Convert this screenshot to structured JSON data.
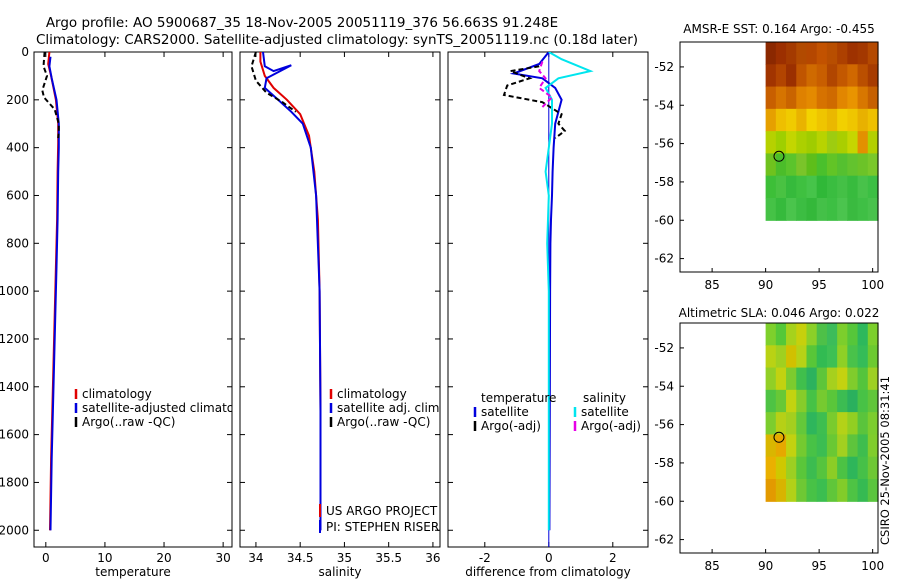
{
  "title_line1": "Argo profile: AO 5900687_35 18-Nov-2005 20051119_376 56.663S 91.248E",
  "title_line2": "Climatology: CARS2000. Satellite-adjusted climatology: synTS_20051119.nc (0.18d later)",
  "credit": "CSIRO 25-Nov-2005 08:31:41",
  "colors": {
    "climatology": "#e00000",
    "satellite": "#0000dd",
    "argo": "#000000",
    "cyan": "#00e5ee",
    "magenta": "#e600e6"
  },
  "chart_data": [
    {
      "id": "temperature",
      "type": "line",
      "xlabel": "temperature",
      "ylim": [
        2070,
        0
      ],
      "xlim": [
        -2,
        31.5
      ],
      "xticks": [
        0,
        10,
        20,
        30
      ],
      "yticks": [
        0,
        200,
        400,
        600,
        800,
        1000,
        1200,
        1400,
        1600,
        1800,
        2000
      ],
      "legend": [
        "climatology",
        "satellite-adjusted climatology",
        "Argo(..raw -QC)"
      ],
      "series": [
        {
          "name": "climatology",
          "color": "climatology",
          "dash": false,
          "x": [
            0.6,
            0.4,
            0.9,
            1.7,
            2.1,
            2.1,
            2.0,
            1.9,
            1.7,
            1.5,
            1.3,
            1.1,
            0.9,
            0.7
          ],
          "y": [
            0,
            50,
            100,
            200,
            300,
            380,
            500,
            700,
            900,
            1100,
            1300,
            1500,
            1700,
            2000
          ]
        },
        {
          "name": "satellite",
          "color": "satellite",
          "dash": false,
          "x": [
            0.8,
            0.6,
            1.0,
            1.8,
            2.2,
            2.2,
            2.1,
            2.0,
            1.8,
            1.6,
            1.4,
            1.2,
            1.0,
            0.8
          ],
          "y": [
            20,
            60,
            110,
            200,
            300,
            400,
            500,
            700,
            900,
            1100,
            1300,
            1500,
            1700,
            2000
          ]
        },
        {
          "name": "argo",
          "color": "argo",
          "dash": true,
          "x": [
            -0.2,
            -0.4,
            0.2,
            -0.6,
            -0.3,
            1.5,
            2.2,
            2.2,
            2.1
          ],
          "y": [
            0,
            60,
            100,
            160,
            190,
            240,
            300,
            330,
            360
          ]
        }
      ]
    },
    {
      "id": "salinity",
      "type": "line",
      "xlabel": "salinity",
      "ylim": [
        2070,
        0
      ],
      "xlim": [
        33.82,
        36.08
      ],
      "xticks": [
        34,
        34.5,
        35,
        35.5,
        36
      ],
      "xticklabels": [
        "34",
        "34.5",
        "35",
        "35.5",
        "36"
      ],
      "legend": [
        "climatology",
        "satellite adj. clim.",
        "Argo(..raw -QC)"
      ],
      "annotation": [
        "US ARGO PROJECT",
        "PI: STEPHEN RISER"
      ],
      "series": [
        {
          "name": "climatology",
          "color": "climatology",
          "dash": false,
          "x": [
            34.05,
            34.05,
            34.1,
            34.2,
            34.35,
            34.5,
            34.6,
            34.66,
            34.7,
            34.72,
            34.73,
            34.73
          ],
          "y": [
            0,
            40,
            100,
            150,
            200,
            260,
            350,
            500,
            700,
            1000,
            1500,
            2000
          ]
        },
        {
          "name": "satellite",
          "color": "satellite",
          "dash": false,
          "x": [
            34.08,
            34.1,
            34.2,
            34.4,
            34.12,
            34.1,
            34.25,
            34.4,
            34.53,
            34.62,
            34.68,
            34.72,
            34.73,
            34.73
          ],
          "y": [
            0,
            60,
            80,
            55,
            110,
            150,
            200,
            250,
            300,
            400,
            600,
            1000,
            1500,
            2000
          ]
        },
        {
          "name": "argo",
          "color": "argo",
          "dash": true,
          "x": [
            34.0,
            33.95,
            34.0,
            34.12,
            34.3,
            34.45
          ],
          "y": [
            0,
            60,
            120,
            170,
            210,
            250
          ]
        }
      ]
    },
    {
      "id": "difference",
      "type": "line",
      "xlabel": "difference from climatology",
      "ylim": [
        2070,
        0
      ],
      "xlim": [
        -3.15,
        3.1
      ],
      "xticks": [
        -2,
        0,
        2
      ],
      "legend_left_title": "temperature",
      "legend_right_title": "salinity",
      "legend_left": [
        "satellite",
        "Argo(-adj)"
      ],
      "legend_right": [
        "satellite",
        "Argo(-adj)"
      ],
      "series": [
        {
          "name": "temp-satellite",
          "color": "satellite",
          "dash": false,
          "x": [
            0,
            -0.3,
            -1.1,
            -0.2,
            0.2,
            0.4,
            0.3,
            0.2,
            0.15,
            0.12,
            0.1,
            0.07,
            0.05,
            0.04,
            0.03,
            0.02
          ],
          "y": [
            0,
            50,
            90,
            110,
            150,
            200,
            250,
            300,
            400,
            500,
            600,
            700,
            800,
            1000,
            1500,
            2000
          ]
        },
        {
          "name": "temp-argo",
          "color": "argo",
          "dash": true,
          "x": [
            -0.3,
            -1.2,
            -0.6,
            -1.3,
            -1.4,
            -0.2,
            0.4,
            0.3,
            0.5,
            0.2
          ],
          "y": [
            60,
            80,
            110,
            140,
            180,
            210,
            260,
            300,
            330,
            360
          ]
        },
        {
          "name": "sal-satellite",
          "color": "cyan",
          "dash": false,
          "x": [
            0,
            0.4,
            1.3,
            0.3,
            -0.1,
            0.1,
            0.1,
            0.0,
            -0.1,
            0.0,
            -0.05,
            0.0,
            0.0
          ],
          "y": [
            0,
            30,
            80,
            110,
            150,
            200,
            300,
            400,
            500,
            600,
            800,
            1000,
            2000
          ]
        },
        {
          "name": "sal-argo",
          "color": "magenta",
          "dash": true,
          "x": [
            -0.2,
            -0.3,
            -0.1,
            -0.3,
            0.1,
            -0.2
          ],
          "y": [
            40,
            80,
            110,
            150,
            190,
            230
          ]
        }
      ]
    }
  ],
  "maps": [
    {
      "id": "sst-map",
      "title": "AMSR-E SST: 0.164  Argo: -0.455",
      "xlim": [
        82,
        100.5
      ],
      "ylim": [
        -62.7,
        -50.7
      ],
      "xticks": [
        85,
        90,
        95,
        100
      ],
      "yticks": [
        -52,
        -54,
        -56,
        -58,
        -60,
        -62
      ],
      "data_extent": {
        "lon": [
          90,
          100.5
        ],
        "lat": [
          -60,
          -50.7
        ]
      },
      "marker": {
        "lon": 91.248,
        "lat": -56.663
      },
      "rows": [
        [
          "#8b2800",
          "#9c2f00",
          "#a43a00",
          "#b24a00",
          "#b54700",
          "#c25200",
          "#b84e00",
          "#ad4000",
          "#9e3200",
          "#a33800",
          "#b44900"
        ],
        [
          "#a13400",
          "#b24400",
          "#9b3000",
          "#c05500",
          "#cf6a00",
          "#c85e00",
          "#b14600",
          "#c35800",
          "#d06800",
          "#ba4f00",
          "#a73c00"
        ],
        [
          "#c85f00",
          "#d67400",
          "#c96400",
          "#df8100",
          "#e48a00",
          "#d67200",
          "#cf6a00",
          "#e28600",
          "#e99400",
          "#d87700",
          "#c66000"
        ],
        [
          "#e6a000",
          "#eebf00",
          "#f0cb00",
          "#e9b300",
          "#f3d300",
          "#efc500",
          "#eab800",
          "#f2d000",
          "#efc600",
          "#e8b100",
          "#eec000"
        ],
        [
          "#b6d100",
          "#9fcf00",
          "#c3d600",
          "#acd000",
          "#a0cc00",
          "#b8d300",
          "#9ecc10",
          "#aace00",
          "#c6d600",
          "#e39000",
          "#b3d000"
        ],
        [
          "#6fc21e",
          "#4bbd2a",
          "#5bc42c",
          "#7ac42a",
          "#5ebe1a",
          "#4ac02c",
          "#62c426",
          "#55c030",
          "#63c32e",
          "#6cc328",
          "#7ac82a"
        ],
        [
          "#3dbf38",
          "#49c242",
          "#36ba3c",
          "#3fc040",
          "#46c44a",
          "#30b838",
          "#3abd40",
          "#44c046",
          "#38bb3e",
          "#48c24a",
          "#3cbf44"
        ],
        [
          "#45c246",
          "#36ba3c",
          "#4ac44c",
          "#3cbd42",
          "#34b83a",
          "#44c048",
          "#3dbf43",
          "#4bc44e",
          "#3aba40",
          "#3fbf45",
          "#48c24c"
        ]
      ]
    },
    {
      "id": "sla-map",
      "title": "Altimetric SLA: 0.046  Argo: 0.022",
      "xlim": [
        82,
        100.5
      ],
      "ylim": [
        -62.7,
        -50.7
      ],
      "xticks": [
        85,
        90,
        95,
        100
      ],
      "yticks": [
        -52,
        -54,
        -56,
        -58,
        -60,
        -62
      ],
      "data_extent": {
        "lon": [
          90,
          100.5
        ],
        "lat": [
          -60,
          -50.7
        ]
      },
      "marker": {
        "lon": 91.248,
        "lat": -56.663
      },
      "rows": [
        [
          "#7ed02c",
          "#55c838",
          "#a6d21c",
          "#c7d00c",
          "#8bd028",
          "#4ec048",
          "#3cbc5a",
          "#7cce2c",
          "#56c63a",
          "#2eb85c",
          "#7ccf2c"
        ],
        [
          "#b9d214",
          "#a0d020",
          "#d1c000",
          "#b6d216",
          "#58c638",
          "#32bb52",
          "#3ec054",
          "#8ed026",
          "#49c24a",
          "#35bc58",
          "#6cca30"
        ],
        [
          "#92cf26",
          "#c2d210",
          "#7ccb2e",
          "#40bf4c",
          "#2cb25e",
          "#5ec53a",
          "#a6d01e",
          "#c4d210",
          "#80cc2c",
          "#54c43c",
          "#9ed022"
        ],
        [
          "#4ec344",
          "#68c836",
          "#c3d310",
          "#86cc2a",
          "#46c246",
          "#76ca30",
          "#5ac63a",
          "#3cbc52",
          "#2ab05e",
          "#48c246",
          "#60c63a"
        ],
        [
          "#7ccd2e",
          "#b6d016",
          "#a4cf1e",
          "#64c83a",
          "#2eb65c",
          "#3ebe50",
          "#7acb2e",
          "#b4d218",
          "#92cf22",
          "#5ac43c",
          "#7ccd2e"
        ],
        [
          "#d9b600",
          "#e6a800",
          "#c2d210",
          "#74ca30",
          "#48c246",
          "#3cbd52",
          "#6ac834",
          "#a2d020",
          "#5ec43c",
          "#3ebd4e",
          "#80cd2c"
        ],
        [
          "#eab000",
          "#cfc800",
          "#9ccf22",
          "#5ac63a",
          "#3cbc50",
          "#56c43e",
          "#8ccd26",
          "#4cc244",
          "#2eb65a",
          "#46c048",
          "#6ec834"
        ],
        [
          "#e39a00",
          "#d8b400",
          "#b2d118",
          "#6ec834",
          "#48c246",
          "#3cbe50",
          "#60c63a",
          "#82cc2a",
          "#4ec344",
          "#36ba52",
          "#5ac53e"
        ]
      ]
    }
  ]
}
